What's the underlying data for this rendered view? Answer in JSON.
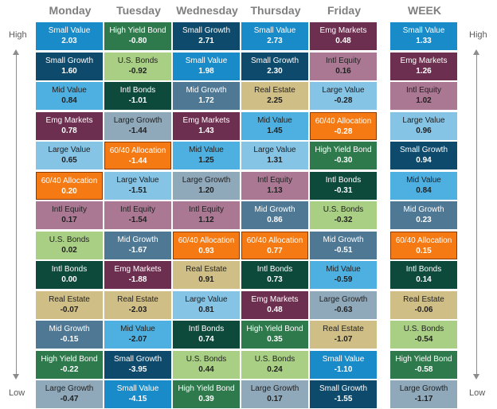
{
  "chart_data": {
    "type": "table",
    "headers": [
      "Monday",
      "Tuesday",
      "Wednesday",
      "Thursday",
      "Friday",
      "WEEK"
    ],
    "side_labels": {
      "high": "High",
      "low": "Low"
    },
    "columns": [
      [
        [
          "Small Value",
          "2.03"
        ],
        [
          "Small Growth",
          "1.60"
        ],
        [
          "Mid Value",
          "0.84"
        ],
        [
          "Emg Markets",
          "0.78"
        ],
        [
          "Large Value",
          "0.65"
        ],
        [
          "60/40 Allocation",
          "0.20"
        ],
        [
          "Intl Equity",
          "0.17"
        ],
        [
          "U.S. Bonds",
          "0.02"
        ],
        [
          "Intl Bonds",
          "0.00"
        ],
        [
          "Real Estate",
          "-0.07"
        ],
        [
          "Mid Growth",
          "-0.15"
        ],
        [
          "High Yield Bond",
          "-0.22"
        ],
        [
          "Large Growth",
          "-0.47"
        ]
      ],
      [
        [
          "High Yield Bond",
          "-0.80"
        ],
        [
          "U.S. Bonds",
          "-0.92"
        ],
        [
          "Intl Bonds",
          "-1.01"
        ],
        [
          "Large Growth",
          "-1.44"
        ],
        [
          "60/40 Allocation",
          "-1.44"
        ],
        [
          "Large Value",
          "-1.51"
        ],
        [
          "Intl Equity",
          "-1.54"
        ],
        [
          "Mid Growth",
          "-1.67"
        ],
        [
          "Emg Markets",
          "-1.88"
        ],
        [
          "Real Estate",
          "-2.03"
        ],
        [
          "Mid Value",
          "-2.07"
        ],
        [
          "Small Growth",
          "-3.95"
        ],
        [
          "Small Value",
          "-4.15"
        ]
      ],
      [
        [
          "Small Growth",
          "2.71"
        ],
        [
          "Small Value",
          "1.98"
        ],
        [
          "Mid Growth",
          "1.72"
        ],
        [
          "Emg Markets",
          "1.43"
        ],
        [
          "Mid Value",
          "1.25"
        ],
        [
          "Large Growth",
          "1.20"
        ],
        [
          "Intl Equity",
          "1.12"
        ],
        [
          "60/40 Allocation",
          "0.93"
        ],
        [
          "Real Estate",
          "0.91"
        ],
        [
          "Large Value",
          "0.81"
        ],
        [
          "Intl Bonds",
          "0.74"
        ],
        [
          "U.S. Bonds",
          "0.44"
        ],
        [
          "High Yield Bond",
          "0.39"
        ]
      ],
      [
        [
          "Small Value",
          "2.73"
        ],
        [
          "Small Growth",
          "2.30"
        ],
        [
          "Real Estate",
          "2.25"
        ],
        [
          "Mid Value",
          "1.45"
        ],
        [
          "Large Value",
          "1.31"
        ],
        [
          "Intl Equity",
          "1.13"
        ],
        [
          "Mid Growth",
          "0.86"
        ],
        [
          "60/40 Allocation",
          "0.77"
        ],
        [
          "Intl Bonds",
          "0.73"
        ],
        [
          "Emg Markets",
          "0.48"
        ],
        [
          "High Yield Bond",
          "0.35"
        ],
        [
          "U.S. Bonds",
          "0.24"
        ],
        [
          "Large Growth",
          "0.17"
        ]
      ],
      [
        [
          "Emg Markets",
          "0.48"
        ],
        [
          "Intl Equity",
          "0.16"
        ],
        [
          "Large Value",
          "-0.28"
        ],
        [
          "60/40 Allocation",
          "-0.28"
        ],
        [
          "High Yield Bond",
          "-0.30"
        ],
        [
          "Intl Bonds",
          "-0.31"
        ],
        [
          "U.S. Bonds",
          "-0.32"
        ],
        [
          "Mid Growth",
          "-0.51"
        ],
        [
          "Mid Value",
          "-0.59"
        ],
        [
          "Large Growth",
          "-0.63"
        ],
        [
          "Real Estate",
          "-1.07"
        ],
        [
          "Small Value",
          "-1.10"
        ],
        [
          "Small Growth",
          "-1.55"
        ]
      ],
      [
        [
          "Small Value",
          "1.33"
        ],
        [
          "Emg Markets",
          "1.26"
        ],
        [
          "Intl Equity",
          "1.02"
        ],
        [
          "Large Value",
          "0.96"
        ],
        [
          "Small Growth",
          "0.94"
        ],
        [
          "Mid Value",
          "0.84"
        ],
        [
          "Mid Growth",
          "0.23"
        ],
        [
          "60/40 Allocation",
          "0.15"
        ],
        [
          "Intl Bonds",
          "0.14"
        ],
        [
          "Real Estate",
          "-0.06"
        ],
        [
          "U.S. Bonds",
          "-0.54"
        ],
        [
          "High Yield Bond",
          "-0.58"
        ],
        [
          "Large Growth",
          "-1.17"
        ]
      ]
    ],
    "asset_colors": {
      "Small Value": "#1a8bc9",
      "Small Growth": "#0d4a6b",
      "Mid Value": "#4eb0e0",
      "Mid Growth": "#4f7894",
      "Large Value": "#86c4e6",
      "Large Growth": "#8fa9ba",
      "Emg Markets": "#6d2f4f",
      "Intl Equity": "#ab7894",
      "Real Estate": "#d0be87",
      "U.S. Bonds": "#a9cf85",
      "Intl Bonds": "#0e4a3c",
      "High Yield Bond": "#2f7a4c",
      "60/40 Allocation": "#f57a14"
    }
  }
}
